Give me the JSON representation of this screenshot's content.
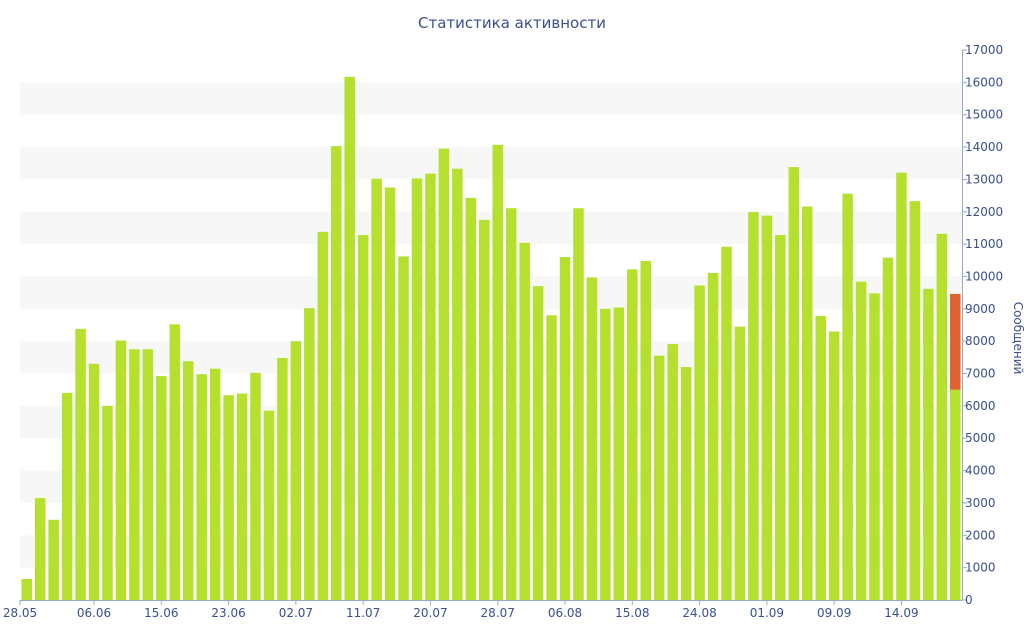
{
  "chart_data": {
    "type": "bar",
    "title": "Статистика активности",
    "ylabel": "Сообщений",
    "xlabel": "",
    "ylim": [
      0,
      17000
    ],
    "y_ticks": [
      0,
      1000,
      2000,
      3000,
      4000,
      5000,
      6000,
      7000,
      8000,
      9000,
      10000,
      11000,
      12000,
      13000,
      14000,
      15000,
      16000,
      17000
    ],
    "y_axis_side": "right",
    "grid": "horizontal alternating bands",
    "x_tick_labels": [
      {
        "index": 0,
        "label": "28.05"
      },
      {
        "index": 5,
        "label": "06.06"
      },
      {
        "index": 10,
        "label": "15.06"
      },
      {
        "index": 15,
        "label": "23.06"
      },
      {
        "index": 20,
        "label": "02.07"
      },
      {
        "index": 25,
        "label": "11.07"
      },
      {
        "index": 30,
        "label": "20.07"
      },
      {
        "index": 35,
        "label": "28.07"
      },
      {
        "index": 40,
        "label": "06.08"
      },
      {
        "index": 45,
        "label": "15.08"
      },
      {
        "index": 50,
        "label": "24.08"
      },
      {
        "index": 55,
        "label": "01.09"
      },
      {
        "index": 60,
        "label": "09.09"
      },
      {
        "index": 65,
        "label": "14.09"
      }
    ],
    "colors": {
      "bar": "#b5e02e",
      "highlight": "#e0622f",
      "band": "#f7f7f7",
      "axis": "#9aa8c8",
      "text": "#3b4f8c"
    },
    "series": [
      {
        "values": [
          650,
          3150,
          2480,
          6400,
          8380,
          7300,
          6000,
          8020,
          7750,
          7750,
          6920,
          8520,
          7380,
          6980,
          7150,
          6330,
          6380,
          7020,
          5850,
          7480,
          8000,
          9020,
          11380,
          14030,
          16170,
          11280,
          13020,
          12750,
          10620,
          13030,
          13180,
          13950,
          13330,
          12430,
          11750,
          14070,
          12110,
          11040,
          9700,
          8800,
          10600,
          12110,
          9970,
          9000,
          9040,
          10220,
          10480,
          7550,
          7910,
          7200,
          9720,
          10110,
          10920,
          8450,
          11990,
          11880,
          11280,
          13380,
          12160,
          8780,
          8300,
          12560,
          9840,
          9480,
          10580,
          13210,
          12330,
          9620,
          11320,
          6500
        ]
      },
      {
        "values": [
          0,
          0,
          0,
          0,
          0,
          0,
          0,
          0,
          0,
          0,
          0,
          0,
          0,
          0,
          0,
          0,
          0,
          0,
          0,
          0,
          0,
          0,
          0,
          0,
          0,
          0,
          0,
          0,
          0,
          0,
          0,
          0,
          0,
          0,
          0,
          0,
          0,
          0,
          0,
          0,
          0,
          0,
          0,
          0,
          0,
          0,
          0,
          0,
          0,
          0,
          0,
          0,
          0,
          0,
          0,
          0,
          0,
          0,
          0,
          0,
          0,
          0,
          0,
          0,
          0,
          0,
          0,
          0,
          0,
          2960
        ]
      }
    ]
  }
}
